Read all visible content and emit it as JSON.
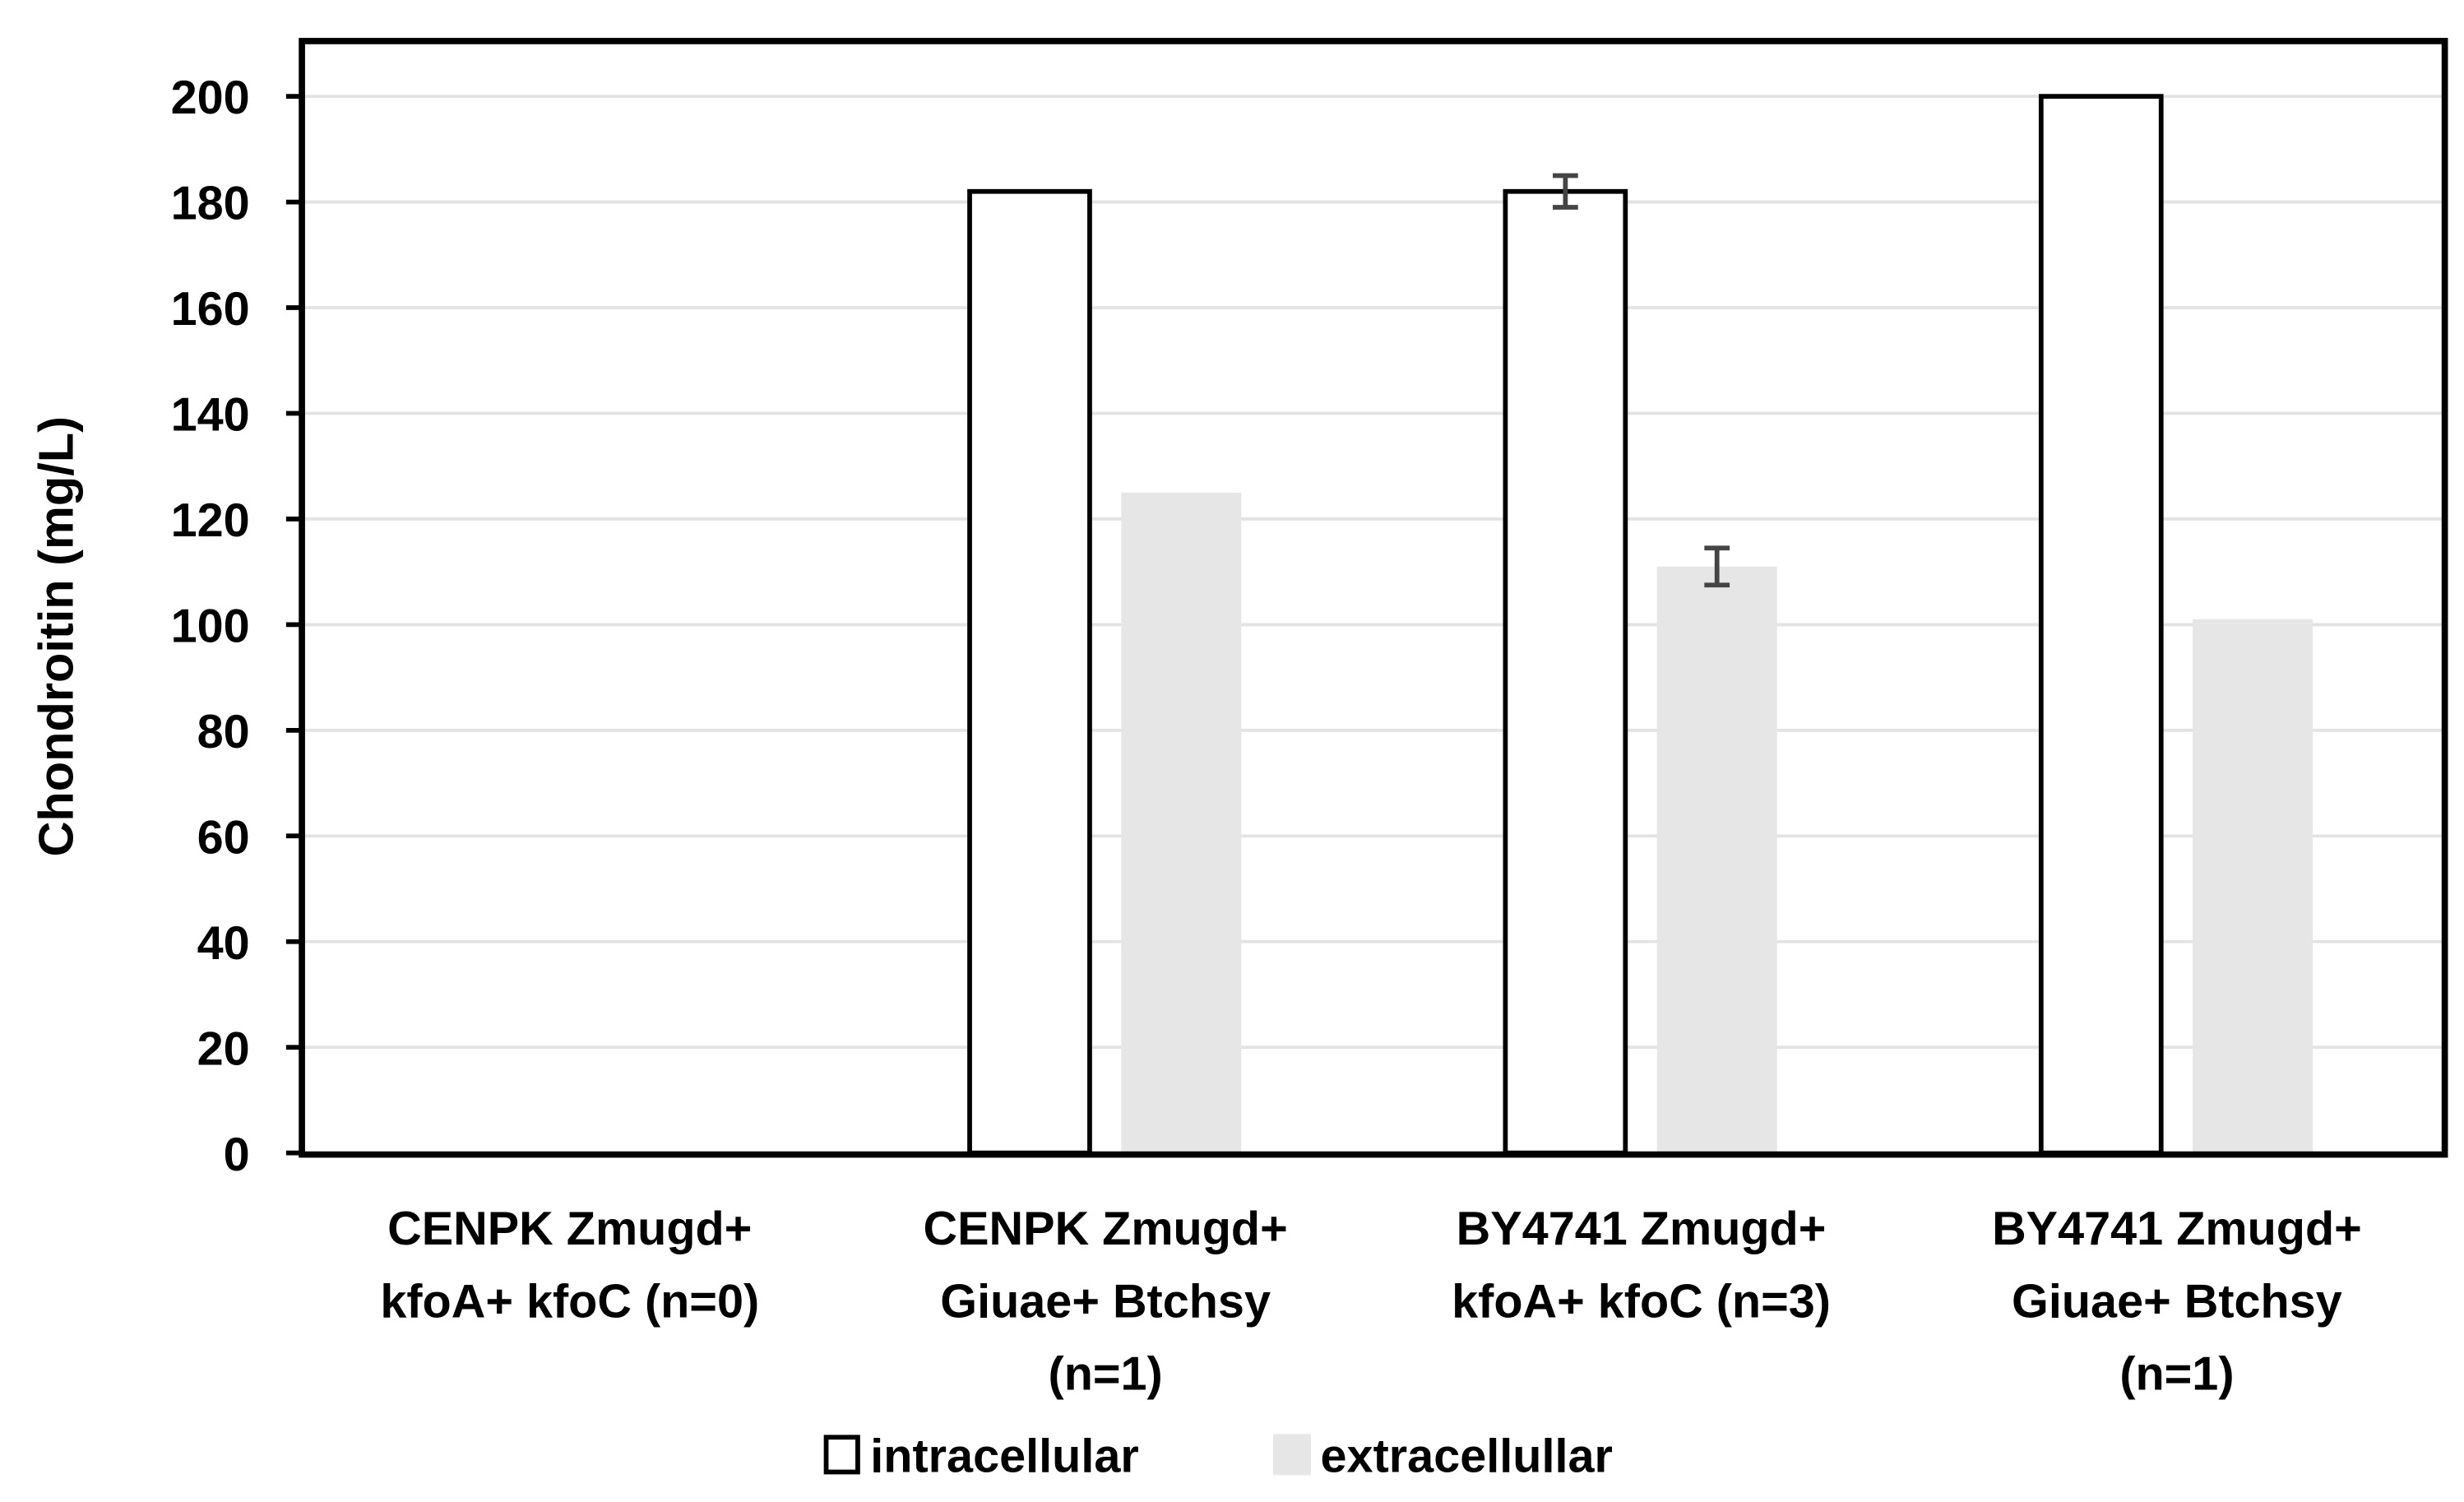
{
  "chart_data": {
    "type": "bar",
    "title": "",
    "xlabel": "",
    "ylabel": "Chondroitin (mg/L)",
    "ylim": [
      0,
      200
    ],
    "yticks": [
      "0",
      "20",
      "40",
      "60",
      "80",
      "100",
      "120",
      "140",
      "160",
      "180",
      "200"
    ],
    "grid": true,
    "legend_position": "bottom",
    "categories": [
      [
        "CENPK Zmugd+",
        "kfoA+ kfoC (n=0)"
      ],
      [
        "CENPK Zmugd+",
        "Giuae+ Btchsy",
        "(n=1)"
      ],
      [
        "BY4741 Zmugd+",
        "kfoA+ kfoC (n=3)"
      ],
      [
        "BY4741 Zmugd+",
        "Giuae+ Btchsy",
        "(n=1)"
      ]
    ],
    "series": [
      {
        "name": "intracellular",
        "color": "#ffffff",
        "stroke": "#000000",
        "values": [
          0,
          182,
          182,
          200
        ],
        "errors": [
          null,
          null,
          3,
          null
        ]
      },
      {
        "name": "extracellullar",
        "color": "#e6e6e6",
        "values": [
          0,
          125,
          111,
          101
        ],
        "errors": [
          null,
          null,
          3.5,
          null
        ]
      }
    ]
  }
}
